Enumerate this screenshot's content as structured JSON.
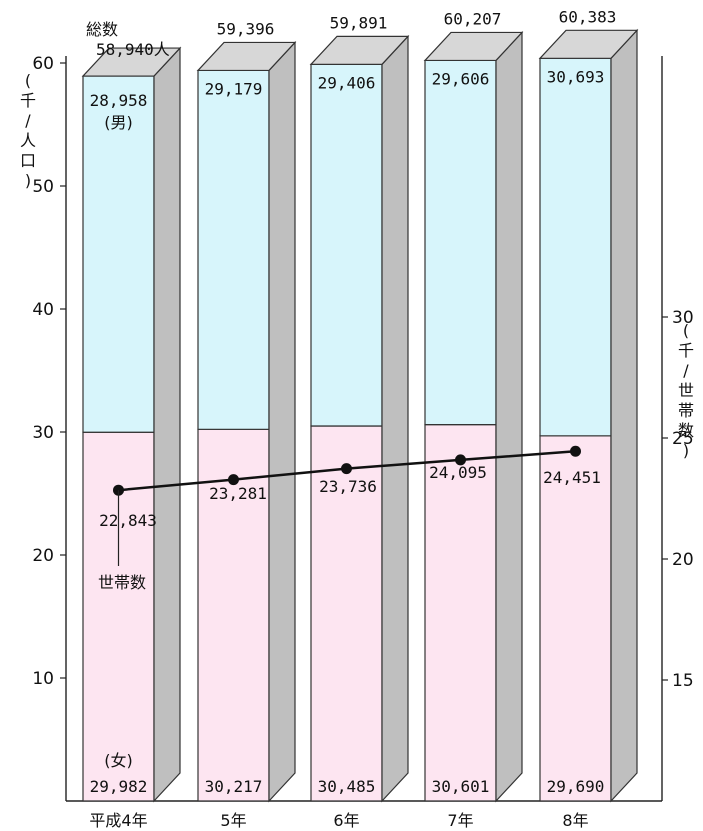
{
  "chart_data": {
    "type": "bar",
    "categories": [
      "平成4年",
      "5年",
      "6年",
      "7年",
      "8年"
    ],
    "series": [
      {
        "name": "(男)",
        "values": [
          28958,
          29179,
          29406,
          29606,
          30693
        ]
      },
      {
        "name": "(女)",
        "values": [
          29982,
          30217,
          30485,
          30601,
          29690
        ]
      },
      {
        "name": "世帯数",
        "values": [
          22843,
          23281,
          23736,
          24095,
          24451
        ]
      }
    ],
    "totals": [
      58940,
      59396,
      59891,
      60207,
      60383
    ],
    "labels": {
      "total_prefix": "総数",
      "total_suffix": "人",
      "male": "(男)",
      "female": "(女)",
      "household": "世帯数",
      "left_unit": "(千/人口)",
      "right_unit": "(千/世帯数)"
    },
    "display": {
      "male": [
        "28,958",
        "29,179",
        "29,406",
        "29,606",
        "30,693"
      ],
      "female": [
        "29,982",
        "30,217",
        "30,485",
        "30,601",
        "29,690"
      ],
      "totals": [
        "58,940",
        "59,396",
        "59,891",
        "60,207",
        "60,383"
      ],
      "households": [
        "22,843",
        "23,281",
        "23,736",
        "24,095",
        "24,451"
      ]
    },
    "left_axis": {
      "ticks": [
        10,
        20,
        30,
        40,
        50,
        60
      ],
      "tick_labels": [
        "10",
        "20",
        "30",
        "40",
        "50",
        "60"
      ],
      "ylim": [
        0,
        62
      ]
    },
    "right_axis": {
      "ticks": [
        15,
        20,
        25,
        30
      ],
      "tick_labels": [
        "15",
        "20",
        "25",
        "30"
      ],
      "ylim": [
        10,
        35
      ]
    },
    "colors": {
      "male": "#d7f5fb",
      "female": "#fde5f1",
      "side": "#bfbfbf",
      "top": "#d7d7d7",
      "line": "#111111"
    }
  }
}
